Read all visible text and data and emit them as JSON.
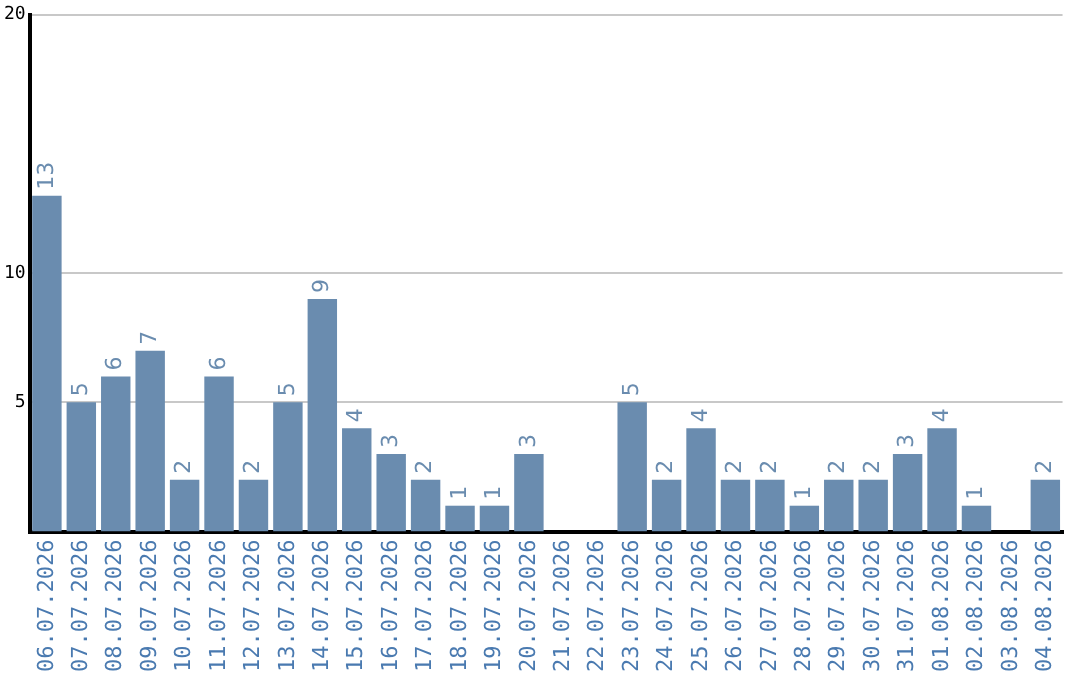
{
  "chart_data": {
    "type": "bar",
    "categories": [
      "06.07.2026",
      "07.07.2026",
      "08.07.2026",
      "09.07.2026",
      "10.07.2026",
      "11.07.2026",
      "12.07.2026",
      "13.07.2026",
      "14.07.2026",
      "15.07.2026",
      "16.07.2026",
      "17.07.2026",
      "18.07.2026",
      "19.07.2026",
      "20.07.2026",
      "21.07.2026",
      "22.07.2026",
      "23.07.2026",
      "24.07.2026",
      "25.07.2026",
      "26.07.2026",
      "27.07.2026",
      "28.07.2026",
      "29.07.2026",
      "30.07.2026",
      "31.07.2026",
      "01.08.2026",
      "02.08.2026",
      "03.08.2026",
      "04.08.2026"
    ],
    "values": [
      13,
      5,
      6,
      7,
      2,
      6,
      2,
      5,
      9,
      4,
      3,
      2,
      1,
      1,
      3,
      null,
      null,
      5,
      2,
      4,
      2,
      2,
      1,
      2,
      2,
      3,
      4,
      1,
      null,
      2
    ],
    "color": "#6a8caf",
    "ylim": [
      0,
      20
    ],
    "yticks": [
      5,
      10,
      20
    ],
    "grid": "y",
    "data_labels": true
  }
}
